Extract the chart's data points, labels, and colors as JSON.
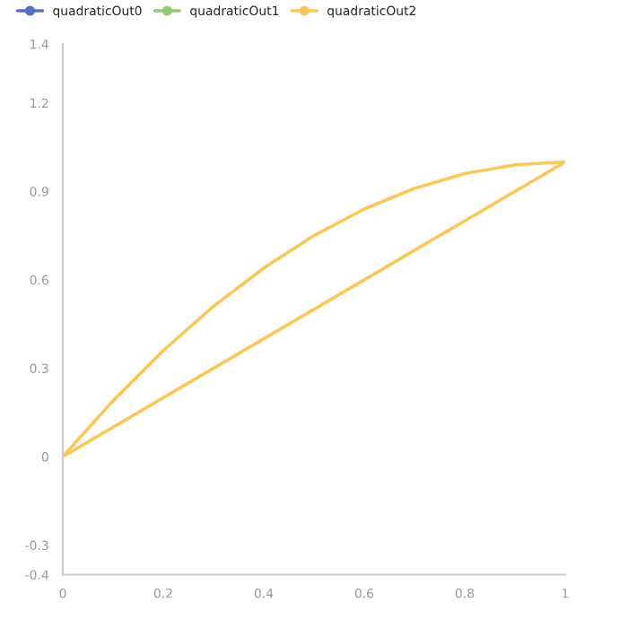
{
  "chart_data": {
    "type": "line",
    "series": [
      {
        "name": "quadraticOut0",
        "color": "#5470c6"
      },
      {
        "name": "quadraticOut1",
        "color": "#91cc75"
      },
      {
        "name": "quadraticOut2",
        "color": "#fac858",
        "x": [
          0,
          0.1,
          0.2,
          0.3,
          0.4,
          0.5,
          0.6,
          0.7,
          0.8,
          0.9,
          1
        ],
        "values": [
          0,
          0.19,
          0.36,
          0.51,
          0.64,
          0.75,
          0.84,
          0.91,
          0.96,
          0.99,
          1.0
        ]
      },
      {
        "color": "#fac858",
        "x": [
          0,
          1
        ],
        "values": [
          0,
          1.0
        ]
      }
    ],
    "xlim": [
      0,
      1
    ],
    "xticks": [
      0,
      0.2,
      0.4,
      0.6,
      0.8,
      1
    ],
    "ylim": [
      -0.4,
      1.4
    ],
    "yticks": [
      -0.4,
      -0.3,
      0,
      0.3,
      0.6,
      0.9,
      1.2,
      1.4
    ],
    "legend": "top left",
    "grid": false,
    "line_style": "solid"
  }
}
